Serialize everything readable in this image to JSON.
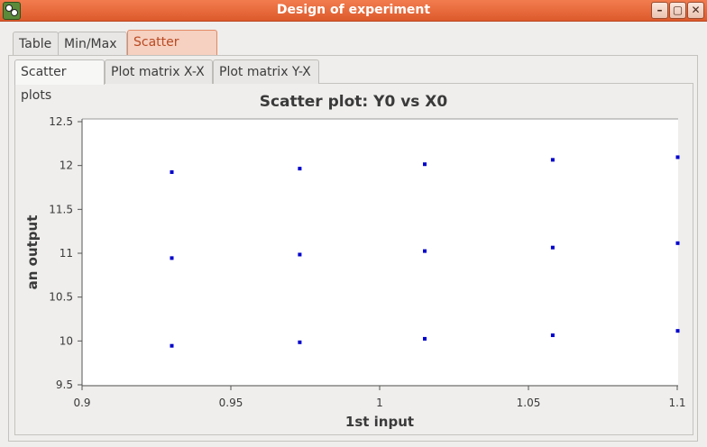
{
  "window": {
    "title": "Design of experiment",
    "buttons": [
      "–",
      "▢",
      "✕"
    ]
  },
  "main_tabs": [
    {
      "label": "Table",
      "active": false
    },
    {
      "label": "Min/Max",
      "active": false
    },
    {
      "label": "Scatter plots",
      "active": true
    }
  ],
  "sub_tabs": [
    {
      "label": "Scatter plots",
      "active": true
    },
    {
      "label": "Plot matrix X-X",
      "active": false
    },
    {
      "label": "Plot matrix Y-X",
      "active": false
    }
  ],
  "colors": {
    "accent": "#e2602f",
    "marker": "#0000cc"
  },
  "chart_data": {
    "type": "scatter",
    "title": "Scatter plot: Y0 vs X0",
    "xlabel": "1st input",
    "ylabel": "an output",
    "xlim": [
      0.9,
      1.1
    ],
    "ylim": [
      9.5,
      12.5
    ],
    "xticks": [
      "0.9",
      "0.95",
      "1",
      "1.05",
      "1.1"
    ],
    "yticks": [
      "9.5",
      "10",
      "10.5",
      "11",
      "11.5",
      "12",
      "12.5"
    ],
    "grid": false,
    "series": [
      {
        "x": [
          0.93,
          0.973,
          1.015,
          1.058,
          1.1,
          0.93,
          0.973,
          1.015,
          1.058,
          1.1,
          0.93,
          0.973,
          1.015,
          1.058,
          1.1
        ],
        "y": [
          9.95,
          9.99,
          10.03,
          10.07,
          10.12,
          10.95,
          10.99,
          11.03,
          11.07,
          11.12,
          11.93,
          11.97,
          12.02,
          12.07,
          12.1
        ]
      }
    ]
  }
}
